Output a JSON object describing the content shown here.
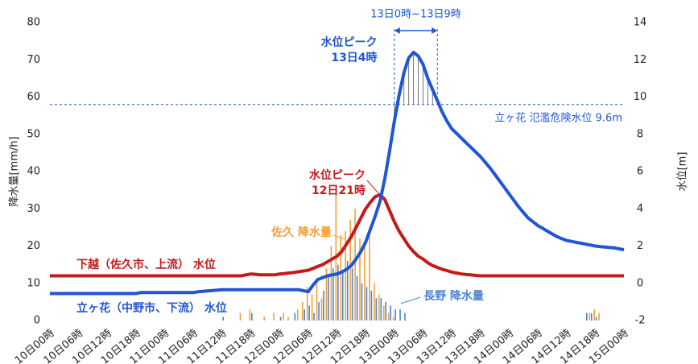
{
  "chart_data": {
    "type": "bar_line",
    "y_label": "降水量[mm/h]",
    "y2_label": "水位[m]",
    "ylim": [
      0,
      80
    ],
    "yticks": [
      0,
      10,
      20,
      30,
      40,
      50,
      60,
      70,
      80
    ],
    "y2lim": [
      -2,
      14
    ],
    "y2ticks": [
      -2,
      0,
      2,
      4,
      6,
      8,
      10,
      12,
      14
    ],
    "categories": [
      "10日00時",
      null,
      null,
      null,
      null,
      null,
      "10日06時",
      null,
      null,
      null,
      null,
      null,
      "10日12時",
      null,
      null,
      null,
      null,
      null,
      "10日18時",
      null,
      null,
      null,
      null,
      null,
      "11日00時",
      null,
      null,
      null,
      null,
      null,
      "11日06時",
      null,
      null,
      null,
      null,
      null,
      "11日12時",
      null,
      null,
      null,
      null,
      null,
      "11日18時",
      null,
      null,
      null,
      null,
      null,
      "12日00時",
      null,
      null,
      null,
      null,
      null,
      "12日06時",
      null,
      null,
      null,
      null,
      null,
      "12日12時",
      null,
      null,
      null,
      null,
      null,
      "12日18時",
      null,
      null,
      null,
      null,
      null,
      "13日00時",
      null,
      null,
      null,
      null,
      null,
      "13日06時",
      null,
      null,
      null,
      null,
      null,
      "13日12時",
      null,
      null,
      null,
      null,
      null,
      "13日18時",
      null,
      null,
      null,
      null,
      null,
      "14日00時",
      null,
      null,
      null,
      null,
      null,
      "14日06時",
      null,
      null,
      null,
      null,
      null,
      "14日12時",
      null,
      null,
      null,
      null,
      null,
      "14日18時",
      null,
      null,
      null,
      null,
      null,
      "15日00時"
    ],
    "series": [
      {
        "name": "佐久 降水量",
        "kind": "bar",
        "axis": "y",
        "color": "#f5a033",
        "values": [
          0,
          0,
          0,
          0,
          0,
          0,
          0,
          0,
          0,
          0,
          0,
          0,
          0,
          0,
          0,
          0,
          0,
          0,
          0,
          0,
          0,
          0,
          0,
          0,
          0,
          0,
          0,
          0,
          0,
          0,
          0,
          0,
          0,
          0,
          0,
          0,
          0,
          0,
          0,
          0,
          2,
          0,
          3,
          0,
          0,
          1,
          0,
          2,
          0,
          2,
          1,
          0,
          3,
          5,
          9,
          7,
          10,
          6,
          14,
          20,
          35,
          23,
          24,
          27,
          30,
          22,
          20,
          25,
          10,
          7,
          4,
          2,
          1,
          0,
          0,
          0,
          0,
          0,
          0,
          0,
          0,
          0,
          0,
          0,
          0,
          0,
          0,
          0,
          0,
          0,
          0,
          0,
          0,
          0,
          0,
          0,
          0,
          0,
          0,
          0,
          0,
          0,
          0,
          0,
          0,
          0,
          0,
          0,
          0,
          0,
          0,
          0,
          0,
          2,
          3,
          2,
          0,
          0,
          0,
          0,
          0
        ]
      },
      {
        "name": "長野 降水量",
        "kind": "bar",
        "axis": "y",
        "color": "#4a86d0",
        "values": [
          0,
          0,
          0,
          0,
          0,
          0,
          0,
          0,
          0,
          0,
          0,
          0,
          0,
          0,
          0,
          0,
          0,
          0,
          0,
          0,
          0,
          0,
          0,
          0,
          0,
          0,
          0,
          0,
          0,
          0,
          0,
          0,
          0,
          0,
          0,
          0,
          1,
          0,
          0,
          0,
          0,
          0,
          2,
          0,
          0,
          0,
          0,
          0,
          1,
          0,
          0,
          2,
          0,
          3,
          4,
          2,
          5,
          8,
          12,
          14,
          15,
          13,
          16,
          14,
          12,
          10,
          9,
          8,
          6,
          6,
          5,
          4,
          3,
          3,
          2,
          0,
          0,
          0,
          0,
          0,
          0,
          0,
          0,
          0,
          0,
          0,
          0,
          0,
          0,
          0,
          0,
          0,
          0,
          0,
          0,
          0,
          0,
          0,
          0,
          0,
          0,
          0,
          0,
          0,
          0,
          0,
          0,
          0,
          0,
          0,
          0,
          0,
          2,
          2,
          1,
          0,
          0,
          0,
          0,
          0,
          0
        ]
      },
      {
        "name": "下越（佐久市、上流） 水位",
        "kind": "line",
        "axis": "y2",
        "color": "#c41a1a",
        "values": [
          0.4,
          0.4,
          0.4,
          0.4,
          0.4,
          0.4,
          0.4,
          0.4,
          0.4,
          0.4,
          0.4,
          0.4,
          0.4,
          0.4,
          0.4,
          0.4,
          0.4,
          0.4,
          0.4,
          0.4,
          0.4,
          0.4,
          0.4,
          0.4,
          0.4,
          0.4,
          0.4,
          0.4,
          0.4,
          0.4,
          0.4,
          0.4,
          0.4,
          0.4,
          0.4,
          0.4,
          0.4,
          0.4,
          0.4,
          0.4,
          0.4,
          0.45,
          0.5,
          0.48,
          0.45,
          0.45,
          0.45,
          0.45,
          0.5,
          0.52,
          0.55,
          0.58,
          0.62,
          0.66,
          0.7,
          0.8,
          0.9,
          1.0,
          1.15,
          1.3,
          1.45,
          1.7,
          2.1,
          2.5,
          3.0,
          3.5,
          4.0,
          4.35,
          4.65,
          4.75,
          4.5,
          3.9,
          3.3,
          2.8,
          2.4,
          2.0,
          1.7,
          1.45,
          1.3,
          1.1,
          0.95,
          0.85,
          0.75,
          0.68,
          0.6,
          0.55,
          0.5,
          0.47,
          0.45,
          0.42,
          0.4,
          0.4,
          0.4,
          0.4,
          0.4,
          0.4,
          0.4,
          0.4,
          0.4,
          0.4,
          0.4,
          0.4,
          0.4,
          0.4,
          0.4,
          0.4,
          0.4,
          0.4,
          0.4,
          0.4,
          0.4,
          0.4,
          0.4,
          0.4,
          0.4,
          0.4,
          0.4,
          0.4,
          0.4,
          0.4,
          0.4
        ]
      },
      {
        "name": "立ヶ花（中野市、下流） 水位",
        "kind": "line",
        "axis": "y2",
        "color": "#1f56d6",
        "values": [
          -0.55,
          -0.55,
          -0.55,
          -0.55,
          -0.55,
          -0.55,
          -0.55,
          -0.55,
          -0.55,
          -0.55,
          -0.55,
          -0.55,
          -0.55,
          -0.55,
          -0.55,
          -0.55,
          -0.55,
          -0.55,
          -0.55,
          -0.5,
          -0.5,
          -0.5,
          -0.5,
          -0.5,
          -0.5,
          -0.5,
          -0.5,
          -0.5,
          -0.5,
          -0.5,
          -0.5,
          -0.45,
          -0.43,
          -0.41,
          -0.39,
          -0.37,
          -0.35,
          -0.35,
          -0.35,
          -0.35,
          -0.35,
          -0.35,
          -0.35,
          -0.35,
          -0.35,
          -0.35,
          -0.35,
          -0.35,
          -0.35,
          -0.35,
          -0.35,
          -0.35,
          -0.35,
          -0.4,
          -0.45,
          -0.1,
          0.2,
          0.3,
          0.4,
          0.45,
          0.5,
          0.6,
          0.75,
          0.95,
          1.3,
          1.7,
          2.2,
          2.9,
          3.6,
          4.4,
          5.6,
          7.1,
          8.7,
          10.1,
          11.3,
          12.1,
          12.4,
          12.2,
          11.75,
          11.0,
          10.4,
          9.8,
          9.2,
          8.7,
          8.3,
          8.05,
          7.8,
          7.55,
          7.3,
          7.05,
          6.8,
          6.5,
          6.2,
          5.85,
          5.5,
          5.15,
          4.8,
          4.45,
          4.1,
          3.8,
          3.5,
          3.3,
          3.1,
          2.95,
          2.8,
          2.65,
          2.5,
          2.4,
          2.3,
          2.25,
          2.2,
          2.15,
          2.1,
          2.05,
          2.0,
          1.97,
          1.95,
          1.92,
          1.9,
          1.85,
          1.8
        ]
      }
    ],
    "danger_level": {
      "value": 9.6,
      "label": "立ヶ花 氾濫危険水位 9.6m"
    },
    "peak_range": {
      "x": [
        72,
        81
      ],
      "label": "13日0時~13日9時"
    },
    "peak_labels": [
      {
        "series": 3,
        "lines": [
          "水位ピーク",
          "13日4時"
        ]
      },
      {
        "series": 2,
        "lines": [
          "水位ピーク",
          "12日21時"
        ]
      }
    ]
  }
}
